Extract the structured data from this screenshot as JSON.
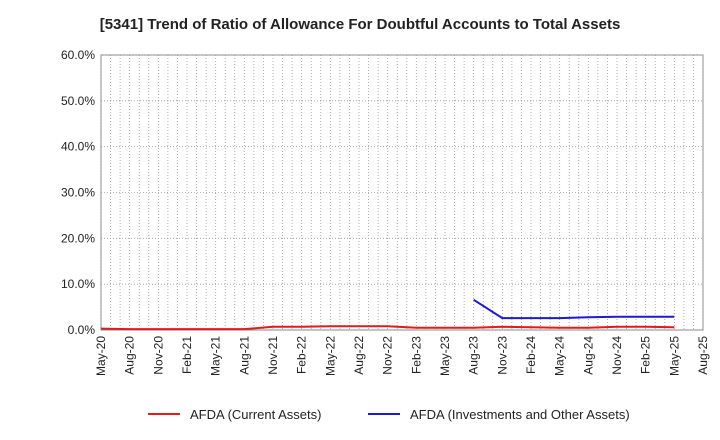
{
  "chart_data": {
    "type": "line",
    "title": "[5341]  Trend of Ratio of Allowance For Doubtful Accounts to Total Assets",
    "xlabel": "",
    "ylabel": "",
    "ylim": [
      0,
      60
    ],
    "y_ticks": [
      "0.0%",
      "10.0%",
      "20.0%",
      "30.0%",
      "40.0%",
      "50.0%",
      "60.0%"
    ],
    "x_ticks": [
      "May-20",
      "Aug-20",
      "Nov-20",
      "Feb-21",
      "May-21",
      "Aug-21",
      "Nov-21",
      "Feb-22",
      "May-22",
      "Aug-22",
      "Nov-22",
      "Feb-23",
      "May-23",
      "Aug-23",
      "Nov-23",
      "Feb-24",
      "May-24",
      "Aug-24",
      "Nov-24",
      "Feb-25",
      "May-25",
      "Aug-25"
    ],
    "grid": true,
    "legend_position": "bottom",
    "series": [
      {
        "name": "AFDA (Current Assets)",
        "color": "#e31a1c",
        "values": [
          0.3,
          0.2,
          0.2,
          0.2,
          0.2,
          0.2,
          0.7,
          0.7,
          0.8,
          0.8,
          0.8,
          0.5,
          0.5,
          0.5,
          0.7,
          0.6,
          0.5,
          0.5,
          0.7,
          0.7,
          0.6,
          null
        ]
      },
      {
        "name": "AFDA (Investments and Other Assets)",
        "color": "#1a1adb",
        "values": [
          null,
          null,
          null,
          null,
          null,
          null,
          null,
          null,
          null,
          null,
          null,
          null,
          null,
          6.6,
          2.6,
          2.6,
          2.6,
          2.8,
          2.9,
          2.9,
          2.9,
          null
        ]
      }
    ]
  }
}
